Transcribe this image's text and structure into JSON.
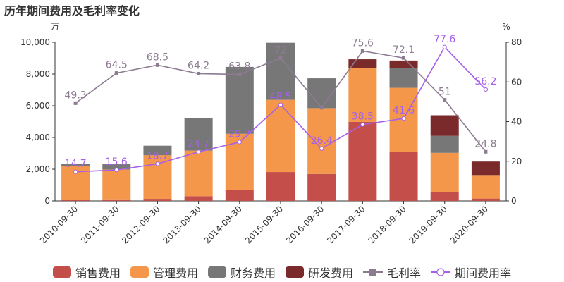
{
  "title": "历年期间费用及毛利率变化",
  "colors": {
    "sales": "#c44e4a",
    "admin": "#f5974a",
    "finance": "#777777",
    "rd": "#7a2a2a",
    "gross_margin": "#8c7b91",
    "expense_rate": "#a660e8"
  },
  "chart_data": {
    "type": "bar",
    "stacked": true,
    "title": "历年期间费用及毛利率变化",
    "left_axis_unit": "万",
    "right_axis_unit": "%",
    "ylim": [
      0,
      10000
    ],
    "y2lim": [
      0,
      80
    ],
    "yticks": [
      "0",
      "2,000",
      "4,000",
      "6,000",
      "8,000",
      "10,000"
    ],
    "y2ticks": [
      "0",
      "20",
      "40",
      "60",
      "80"
    ],
    "categories": [
      "2010-09-30",
      "2011-09-30",
      "2012-09-30",
      "2013-09-30",
      "2014-09-30",
      "2015-09-30",
      "2016-09-30",
      "2017-09-30",
      "2018-09-30",
      "2019-09-30",
      "2020-09-30"
    ],
    "series": [
      {
        "name": "销售费用",
        "values": [
          50,
          100,
          130,
          300,
          680,
          1820,
          1700,
          4980,
          3100,
          550,
          150
        ]
      },
      {
        "name": "管理费用",
        "values": [
          2150,
          1880,
          2750,
          2870,
          3550,
          4550,
          4150,
          3400,
          4030,
          2480,
          1480
        ]
      },
      {
        "name": "财务费用",
        "values": [
          150,
          330,
          600,
          2060,
          4220,
          3600,
          1880,
          0,
          1270,
          1070,
          0
        ]
      },
      {
        "name": "研发费用",
        "values": [
          0,
          0,
          0,
          0,
          0,
          0,
          0,
          550,
          450,
          1300,
          850
        ]
      }
    ],
    "lines": [
      {
        "name": "毛利率",
        "values": [
          49.3,
          64.5,
          68.5,
          64.2,
          63.8,
          72,
          47,
          75.6,
          72.1,
          51,
          24.8
        ],
        "labels": [
          "49.3",
          "64.5",
          "68.5",
          "64.2",
          "63.8",
          "72",
          "",
          "75.6",
          "72.1",
          "51",
          "24.8"
        ]
      },
      {
        "name": "期间费用率",
        "values": [
          14.7,
          15.6,
          18.7,
          24.7,
          29.7,
          48.5,
          26.4,
          38.5,
          41.6,
          77.6,
          56.2
        ],
        "labels": [
          "14.7",
          "15.6",
          "18.7",
          "24.7",
          "29.7",
          "48.5",
          "26.4",
          "38.5",
          "41.6",
          "77.6",
          "56.2"
        ]
      }
    ],
    "legend_position": "bottom"
  },
  "legend": [
    {
      "label": "销售费用",
      "kind": "box",
      "color_key": "sales"
    },
    {
      "label": "管理费用",
      "kind": "box",
      "color_key": "admin"
    },
    {
      "label": "财务费用",
      "kind": "box",
      "color_key": "finance"
    },
    {
      "label": "研发费用",
      "kind": "box",
      "color_key": "rd"
    },
    {
      "label": "毛利率",
      "kind": "line-square",
      "color_key": "gross_margin"
    },
    {
      "label": "期间费用率",
      "kind": "line-circle",
      "color_key": "expense_rate"
    }
  ]
}
